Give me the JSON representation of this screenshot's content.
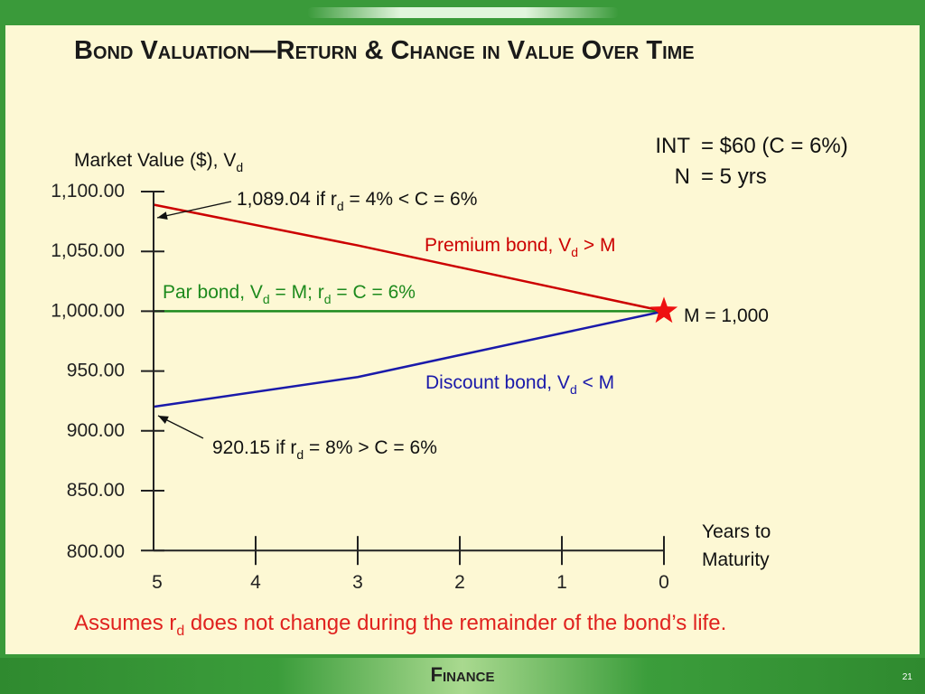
{
  "slide": {
    "title": "Bond Valuation—Return & Change in Value Over Time",
    "footer": "Finance",
    "page_number": "21",
    "note": {
      "before": "Assumes r",
      "sub": "d",
      "after": " does not change during the remainder of the bond’s life.",
      "color": "#e0221f"
    }
  },
  "colors": {
    "premium": "#cc0000",
    "par": "#1d8a1d",
    "discount": "#1a1aaa",
    "star": "#ee1111",
    "axis": "#222222"
  },
  "chart_data": {
    "type": "line",
    "ylabel": {
      "main": "Market Value ($), V",
      "sub": "d"
    },
    "xlabel": [
      "Years to",
      "Maturity"
    ],
    "y_ticks": [
      "1,100.00",
      "1,050.00",
      "1,000.00",
      "950.00",
      "900.00",
      "850.00",
      "800.00"
    ],
    "y_tick_values": [
      1100,
      1050,
      1000,
      950,
      900,
      850,
      800
    ],
    "x_ticks": [
      "5",
      "4",
      "3",
      "2",
      "1",
      "0"
    ],
    "x_tick_values": [
      5,
      4,
      3,
      2,
      1,
      0
    ],
    "ylim": [
      800,
      1100
    ],
    "xlim": [
      5,
      0
    ],
    "series": [
      {
        "name": "Premium bond",
        "x": [
          5,
          3,
          0
        ],
        "y": [
          1089.04,
          1055,
          1000
        ]
      },
      {
        "name": "Par bond",
        "x": [
          5,
          0
        ],
        "y": [
          1000,
          1000
        ]
      },
      {
        "name": "Discount bond",
        "x": [
          5,
          3,
          0
        ],
        "y": [
          920.15,
          945,
          1000
        ]
      }
    ],
    "annotations": [
      {
        "key": "premium",
        "parts": [
          "1,089.04 if r",
          "d",
          " = 4% < C = 6%"
        ]
      },
      {
        "key": "discount",
        "parts": [
          "920.15 if r",
          "d",
          " = 8% > C = 6%"
        ]
      },
      {
        "key": "premium_label",
        "parts": [
          "Premium bond, V",
          "d",
          " > M"
        ]
      },
      {
        "key": "par_label",
        "parts": [
          "Par bond, V",
          "d",
          " = M; r",
          "d",
          " = C = 6%"
        ]
      },
      {
        "key": "discount_label",
        "parts": [
          "Discount bond, V",
          "d",
          " < M"
        ]
      },
      {
        "key": "maturity_label",
        "parts": [
          "M = 1,000"
        ]
      }
    ],
    "params": [
      {
        "left": "INT",
        "right": "= $60  (C = 6%)"
      },
      {
        "left": "N",
        "right": "= 5 yrs"
      }
    ]
  }
}
